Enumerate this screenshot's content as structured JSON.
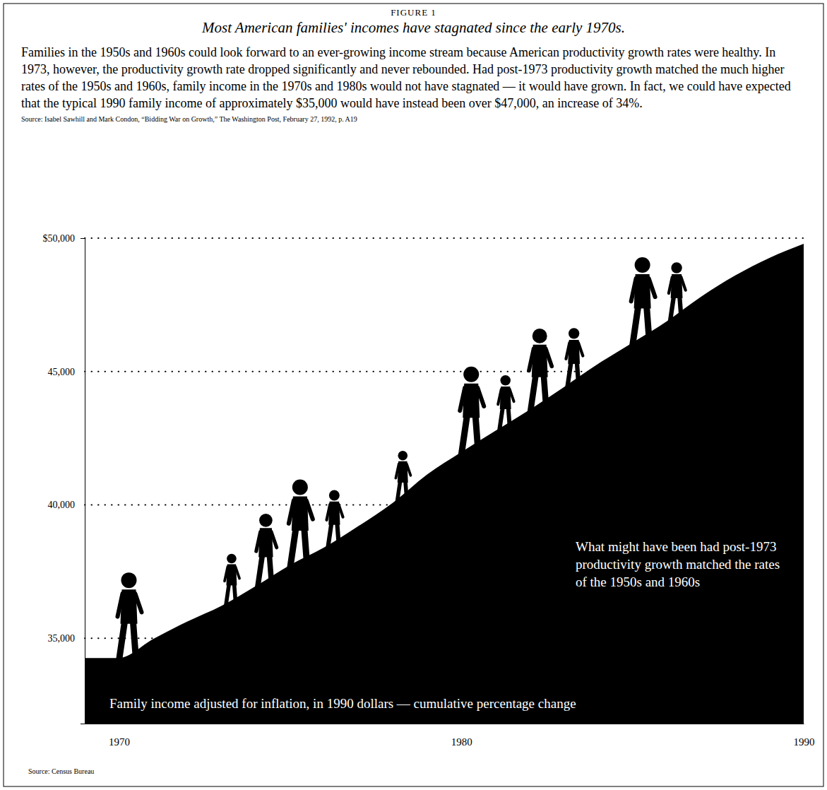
{
  "chart_data": {
    "type": "area",
    "label": "FIGURE 1",
    "title": "Most American families' incomes have stagnated since the early 1970s.",
    "subtitle": "Families in the 1950s and 1960s could look forward to an ever-growing income stream because American productivity growth rates were healthy. In 1973, however, the productivity growth rate dropped significantly and never rebounded. Had post-1973 productivity growth matched the much higher rates of the 1950s and 1960s, family income in the 1970s and 1980s would not have stagnated — it would have grown. In fact, we could have expected that the typical 1990 family income of approximately $35,000 would have instead been over $47,000, an increase of 34%.",
    "subtitle_source": "Source: Isabel Sawhill and Mark Condon, “Bidding War on Growth,” The Washington Post, February 27, 1992, p. A19",
    "annotations": [
      "What might have been had post-1973 productivity growth matched the rates of the 1950s and 1960s"
    ],
    "source": "Source: Census Bureau",
    "x": [
      1969,
      1970,
      1971,
      1972,
      1973,
      1974,
      1975,
      1976,
      1977,
      1978,
      1979,
      1980,
      1981,
      1982,
      1983,
      1984,
      1985,
      1986,
      1987,
      1988,
      1989,
      1990
    ],
    "series": [
      {
        "name": "Family income adjusted for inflation, in 1990 dollars — cumulative percentage change",
        "color": "#000000",
        "values": [
          34260,
          34260,
          34970,
          35630,
          36220,
          36960,
          37750,
          38410,
          39210,
          40080,
          41140,
          41980,
          42780,
          43570,
          44420,
          45290,
          46080,
          46880,
          47800,
          48600,
          49260,
          49790
        ]
      }
    ],
    "xlim": [
      1969,
      1990
    ],
    "xticks": [
      1970,
      1980,
      1990
    ],
    "ylim": [
      31800,
      50000
    ],
    "yticks": [
      {
        "value": 35000,
        "label": "35,000"
      },
      {
        "value": 40000,
        "label": "40,000"
      },
      {
        "value": 45000,
        "label": "45,000"
      },
      {
        "value": 50000,
        "label": "$50,000"
      }
    ],
    "grid": true
  }
}
